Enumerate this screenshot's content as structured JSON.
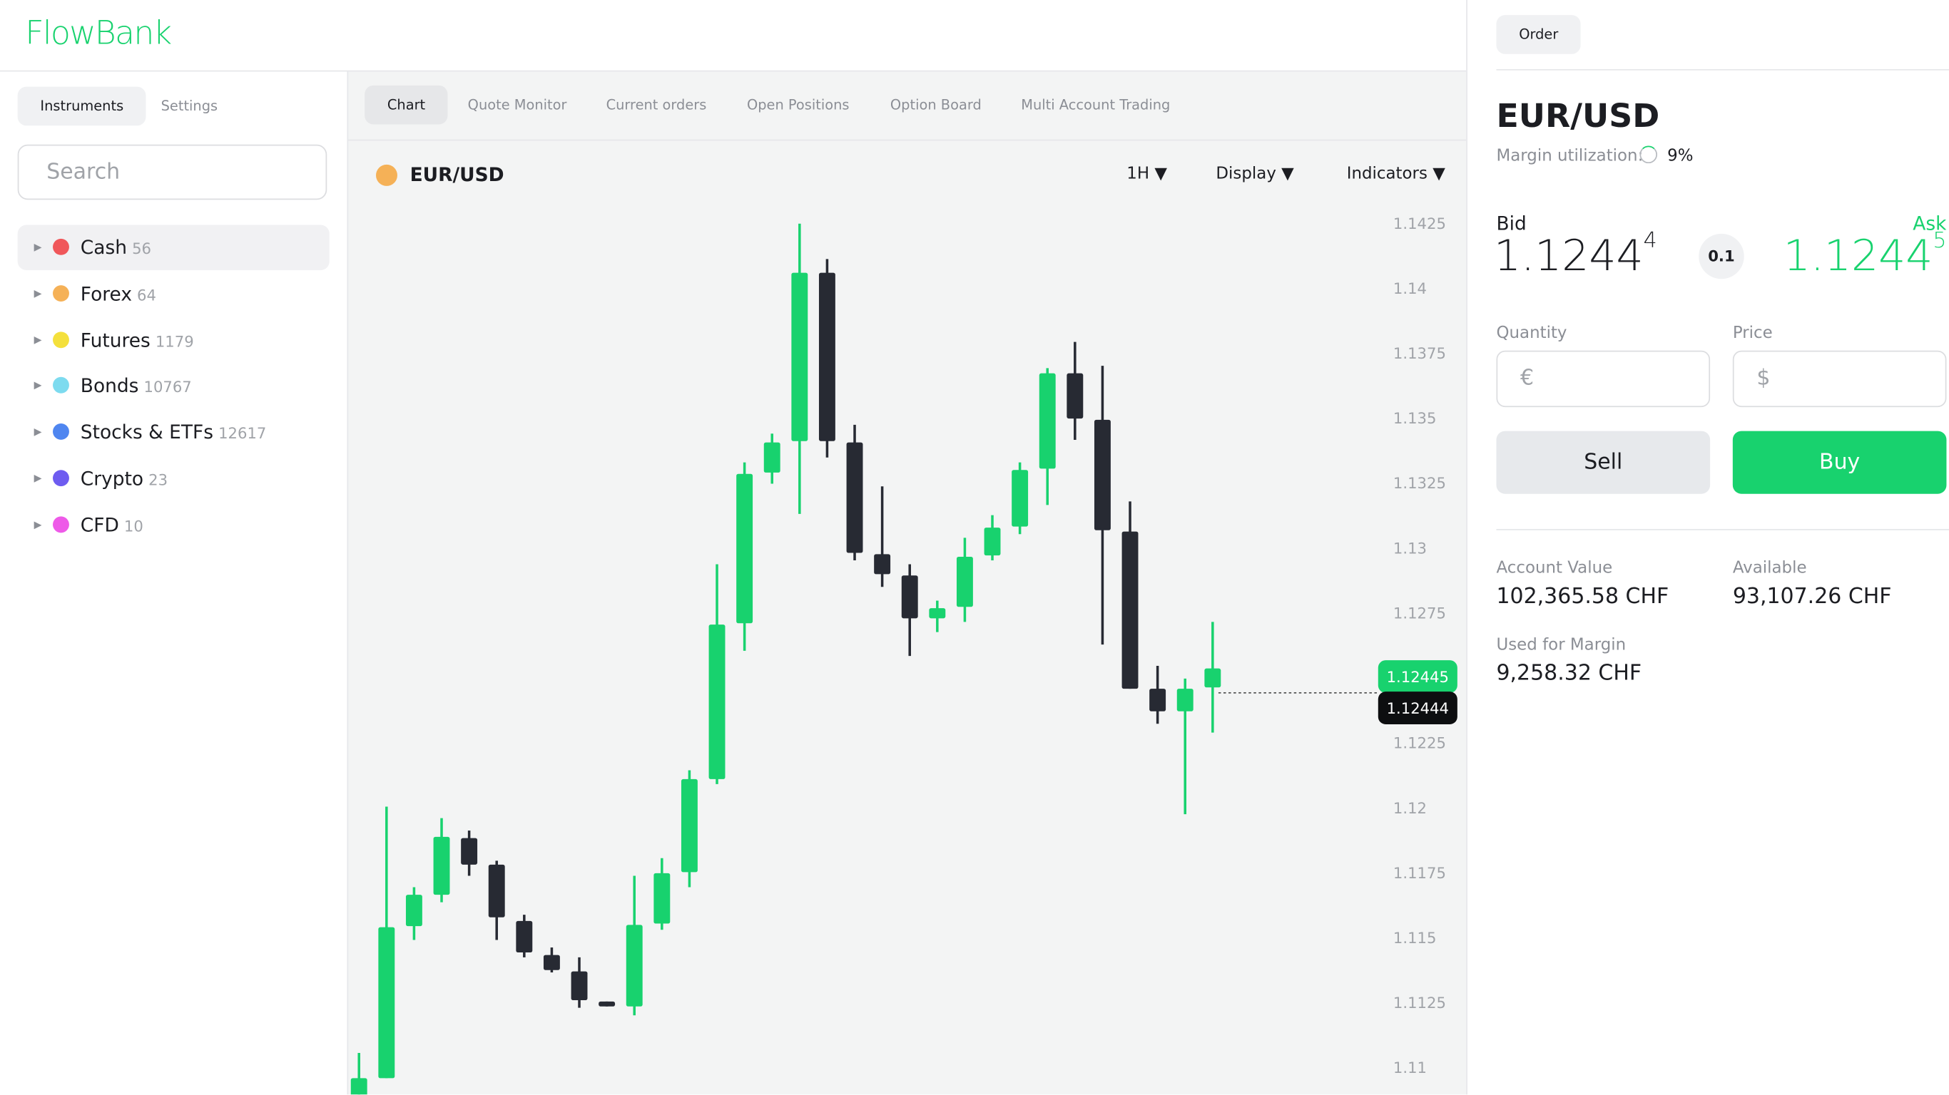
{
  "header": {
    "logo": "FlowBank"
  },
  "sidebar": {
    "tabs": [
      "Instruments",
      "Settings"
    ],
    "search_placeholder": "Search",
    "categories": [
      {
        "name": "Cash",
        "count": "56",
        "color": "#f0575a"
      },
      {
        "name": "Forex",
        "count": "64",
        "color": "#f5b157"
      },
      {
        "name": "Futures",
        "count": "1179",
        "color": "#f4e03c"
      },
      {
        "name": "Bonds",
        "count": "10767",
        "color": "#7ddbef"
      },
      {
        "name": "Stocks & ETFs",
        "count": "12617",
        "color": "#4f86f0"
      },
      {
        "name": "Crypto",
        "count": "23",
        "color": "#6e5cf0"
      },
      {
        "name": "CFD",
        "count": "10",
        "color": "#ee5ae8"
      }
    ]
  },
  "tabs": [
    "Chart",
    "Quote Monitor",
    "Current orders",
    "Open Positions",
    "Option Board",
    "Multi Account Trading"
  ],
  "chart_header": {
    "symbol": "EUR/USD",
    "controls": [
      "1H",
      "Display",
      "Indicators"
    ]
  },
  "chart_data": {
    "type": "candlestick",
    "up_color": "#18d26e",
    "down_color": "#272a33",
    "ylim": [
      1.1085,
      1.1434
    ],
    "yticks": [
      1.1425,
      1.14,
      1.1375,
      1.135,
      1.1325,
      1.13,
      1.1275,
      1.1225,
      1.12,
      1.1175,
      1.115,
      1.1125,
      1.11
    ],
    "grid": false,
    "ask": 1.12445,
    "bid": 1.12444,
    "candles": [
      {
        "open": 1.10879,
        "high": 1.11058,
        "low": 1.10855,
        "close": 1.10961
      },
      {
        "open": 1.10961,
        "high": 1.12006,
        "low": 1.10961,
        "close": 1.11542
      },
      {
        "open": 1.11546,
        "high": 1.11696,
        "low": 1.11493,
        "close": 1.11667
      },
      {
        "open": 1.11667,
        "high": 1.11962,
        "low": 1.11638,
        "close": 1.1189
      },
      {
        "open": 1.11885,
        "high": 1.11914,
        "low": 1.1174,
        "close": 1.11783
      },
      {
        "open": 1.11783,
        "high": 1.11798,
        "low": 1.11493,
        "close": 1.1158
      },
      {
        "open": 1.11566,
        "high": 1.1159,
        "low": 1.11426,
        "close": 1.11445
      },
      {
        "open": 1.11435,
        "high": 1.11464,
        "low": 1.11368,
        "close": 1.11377
      },
      {
        "open": 1.11372,
        "high": 1.11426,
        "low": 1.11232,
        "close": 1.11261
      },
      {
        "open": 1.11256,
        "high": 1.11256,
        "low": 1.11237,
        "close": 1.11237
      },
      {
        "open": 1.11237,
        "high": 1.1174,
        "low": 1.11203,
        "close": 1.11551
      },
      {
        "open": 1.11556,
        "high": 1.11808,
        "low": 1.11532,
        "close": 1.1175
      },
      {
        "open": 1.11754,
        "high": 1.12146,
        "low": 1.11696,
        "close": 1.12112
      },
      {
        "open": 1.12112,
        "high": 1.12939,
        "low": 1.12093,
        "close": 1.12707
      },
      {
        "open": 1.12712,
        "high": 1.13331,
        "low": 1.12606,
        "close": 1.13287
      },
      {
        "open": 1.13292,
        "high": 1.13442,
        "low": 1.13249,
        "close": 1.13408
      },
      {
        "open": 1.13413,
        "high": 1.1425,
        "low": 1.13133,
        "close": 1.14061
      },
      {
        "open": 1.14061,
        "high": 1.14114,
        "low": 1.1335,
        "close": 1.13413
      },
      {
        "open": 1.13408,
        "high": 1.13476,
        "low": 1.12954,
        "close": 1.12983
      },
      {
        "open": 1.12978,
        "high": 1.13239,
        "low": 1.12852,
        "close": 1.12901
      },
      {
        "open": 1.12896,
        "high": 1.12939,
        "low": 1.12586,
        "close": 1.12731
      },
      {
        "open": 1.12731,
        "high": 1.12799,
        "low": 1.12678,
        "close": 1.1277
      },
      {
        "open": 1.12775,
        "high": 1.13041,
        "low": 1.12717,
        "close": 1.12968
      },
      {
        "open": 1.12973,
        "high": 1.13128,
        "low": 1.12954,
        "close": 1.1308
      },
      {
        "open": 1.13084,
        "high": 1.13331,
        "low": 1.13055,
        "close": 1.13302
      },
      {
        "open": 1.13307,
        "high": 1.13694,
        "low": 1.13167,
        "close": 1.13674
      },
      {
        "open": 1.13674,
        "high": 1.13795,
        "low": 1.13418,
        "close": 1.135
      },
      {
        "open": 1.13495,
        "high": 1.13703,
        "low": 1.1263,
        "close": 1.1307
      },
      {
        "open": 1.13065,
        "high": 1.13181,
        "low": 1.1246,
        "close": 1.1246
      },
      {
        "open": 1.1246,
        "high": 1.12548,
        "low": 1.12325,
        "close": 1.12373
      },
      {
        "open": 1.12373,
        "high": 1.12499,
        "low": 1.11977,
        "close": 1.1246
      },
      {
        "open": 1.12465,
        "high": 1.12717,
        "low": 1.12291,
        "close": 1.12538
      }
    ]
  },
  "order": {
    "tab": "Order",
    "symbol": "EUR/USD",
    "margin_label": "Margin utilization:",
    "margin_value": "9%",
    "bid_label": "Bid",
    "bid_main": "1.1244",
    "bid_pip": "4",
    "spread": "0.1",
    "ask_label": "Ask",
    "ask_main": "1.1244",
    "ask_pip": "5",
    "quantity_label": "Quantity",
    "quantity_placeholder": "€",
    "price_label": "Price",
    "price_placeholder": "$",
    "sell": "Sell",
    "buy": "Buy",
    "account_value_label": "Account Value",
    "account_value": "102,365.58 CHF",
    "available_label": "Available",
    "available": "93,107.26 CHF",
    "used_margin_label": "Used for Margin",
    "used_margin": "9,258.32 CHF"
  }
}
